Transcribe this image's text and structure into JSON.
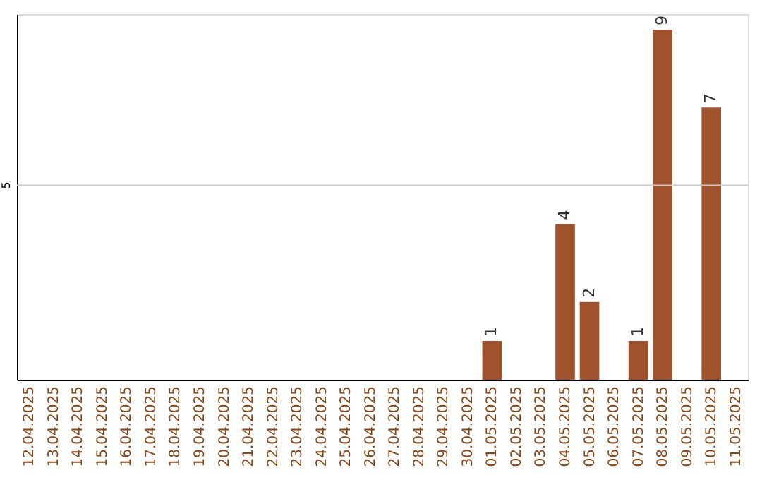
{
  "chart_data": {
    "type": "bar",
    "categories": [
      "12.04.2025",
      "13.04.2025",
      "14.04.2025",
      "15.04.2025",
      "16.04.2025",
      "17.04.2025",
      "18.04.2025",
      "19.04.2025",
      "20.04.2025",
      "21.04.2025",
      "22.04.2025",
      "23.04.2025",
      "24.04.2025",
      "25.04.2025",
      "26.04.2025",
      "27.04.2025",
      "28.04.2025",
      "29.04.2025",
      "30.04.2025",
      "01.05.2025",
      "02.05.2025",
      "03.05.2025",
      "04.05.2025",
      "05.05.2025",
      "06.05.2025",
      "07.05.2025",
      "08.05.2025",
      "09.05.2025",
      "10.05.2025",
      "11.05.2025"
    ],
    "values": [
      null,
      null,
      null,
      null,
      null,
      null,
      null,
      null,
      null,
      null,
      null,
      null,
      null,
      null,
      null,
      null,
      null,
      null,
      null,
      1,
      null,
      null,
      4,
      2,
      null,
      1,
      9,
      null,
      7,
      null
    ],
    "data_labels": true,
    "color": "#a0522d",
    "ylim": [
      0,
      9.4
    ],
    "ref_lines": [
      {
        "axis": "y",
        "value": 5,
        "label": "5",
        "color": "#c8c8c8"
      }
    ]
  }
}
